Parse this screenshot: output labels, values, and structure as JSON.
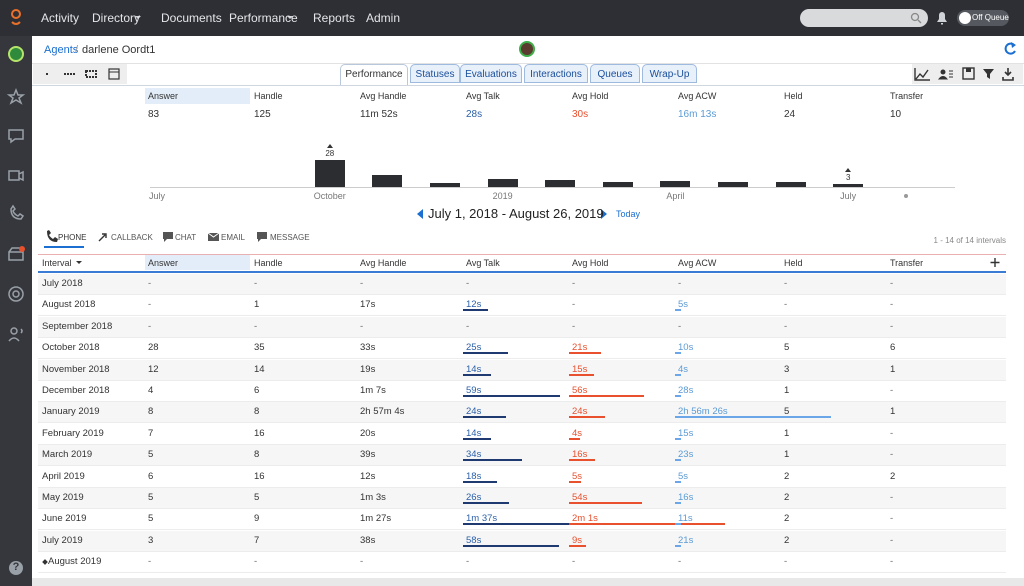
{
  "nav": {
    "items": [
      "Activity",
      "Directory",
      "Documents",
      "Performance",
      "Reports",
      "Admin"
    ],
    "toggle": "Off Queue"
  },
  "help": "?",
  "breadcrumb": [
    "Agents",
    "darlene Oordt1"
  ],
  "tabs": [
    "Performance",
    "Statuses",
    "Evaluations",
    "Interactions",
    "Queues",
    "Wrap-Up"
  ],
  "summary": {
    "headers": [
      "Answer",
      "Handle",
      "Avg Handle",
      "Avg Talk",
      "Avg Hold",
      "Avg ACW",
      "Held",
      "Transfer"
    ],
    "values": [
      83,
      125,
      "11m 52s",
      "28s",
      "30s",
      "16m 13s",
      24,
      10
    ]
  },
  "timeline": {
    "labels": [
      "July",
      "October",
      "2019",
      "April",
      "July"
    ]
  },
  "date_range": "July 1, 2018 - August 26, 2019",
  "today": "Today",
  "media_tabs": [
    "PHONE",
    "CALLBACK",
    "CHAT",
    "EMAIL",
    "MESSAGE"
  ],
  "pager": "1 - 14 of 14 intervals",
  "table": {
    "columns": [
      "Interval",
      "Answer",
      "Handle",
      "Avg Handle",
      "Avg Talk",
      "Avg Hold",
      "Avg ACW",
      "Held",
      "Transfer"
    ],
    "rows": [
      [
        "July 2018",
        "-",
        "-",
        "-",
        "-",
        "-",
        "-",
        "-",
        "-"
      ],
      [
        "August 2018",
        "-",
        1,
        "17s",
        {
          "value": 12,
          "label": "12s"
        },
        "-",
        {
          "value": 5,
          "label": "5s"
        },
        "-",
        "-"
      ],
      [
        "September 2018",
        "-",
        "-",
        "-",
        "-",
        "-",
        "-",
        "-",
        "-"
      ],
      [
        "October 2018",
        28,
        35,
        "33s",
        {
          "value": 25,
          "label": "25s"
        },
        {
          "value": 21,
          "label": "21s"
        },
        {
          "value": 10,
          "label": "10s"
        },
        5,
        6
      ],
      [
        "November 2018",
        12,
        14,
        "19s",
        {
          "value": 14,
          "label": "14s"
        },
        {
          "value": 15,
          "label": "15s"
        },
        {
          "value": 4,
          "label": "4s"
        },
        3,
        1
      ],
      [
        "December 2018",
        4,
        6,
        "1m 7s",
        {
          "value": 59,
          "label": "59s"
        },
        {
          "value": 56,
          "label": "56s"
        },
        {
          "value": 28,
          "label": "28s"
        },
        1,
        "-"
      ],
      [
        "January 2019",
        8,
        8,
        "2h 57m 4s",
        {
          "value": 24,
          "label": "24s"
        },
        {
          "value": 24,
          "label": "24s"
        },
        {
          "value": 10586,
          "label": "2h 56m 26s"
        },
        5,
        1
      ],
      [
        "February 2019",
        7,
        16,
        "20s",
        {
          "value": 14,
          "label": "14s"
        },
        {
          "value": 4,
          "label": "4s"
        },
        {
          "value": 15,
          "label": "15s"
        },
        1,
        "-"
      ],
      [
        "March 2019",
        5,
        8,
        "39s",
        {
          "value": 34,
          "label": "34s"
        },
        {
          "value": 16,
          "label": "16s"
        },
        {
          "value": 23,
          "label": "23s"
        },
        1,
        "-"
      ],
      [
        "April 2019",
        6,
        16,
        "12s",
        {
          "value": 18,
          "label": "18s"
        },
        {
          "value": 5,
          "label": "5s"
        },
        {
          "value": 5,
          "label": "5s"
        },
        2,
        2
      ],
      [
        "May 2019",
        5,
        5,
        "1m 3s",
        {
          "value": 26,
          "label": "26s"
        },
        {
          "value": 54,
          "label": "54s"
        },
        {
          "value": 16,
          "label": "16s"
        },
        2,
        "-"
      ],
      [
        "June 2019",
        5,
        9,
        "1m 27s",
        {
          "value": 97,
          "label": "1m 37s"
        },
        {
          "value": 121,
          "label": "2m 1s"
        },
        {
          "value": 11,
          "label": "11s"
        },
        2,
        "-"
      ],
      [
        "July 2019",
        3,
        7,
        "38s",
        {
          "value": 58,
          "label": "58s"
        },
        {
          "value": 9,
          "label": "9s"
        },
        {
          "value": 21,
          "label": "21s"
        },
        2,
        "-"
      ],
      [
        "August 2019",
        "-",
        "-",
        "-",
        "-",
        "-",
        "-",
        "-",
        "-"
      ]
    ]
  }
}
